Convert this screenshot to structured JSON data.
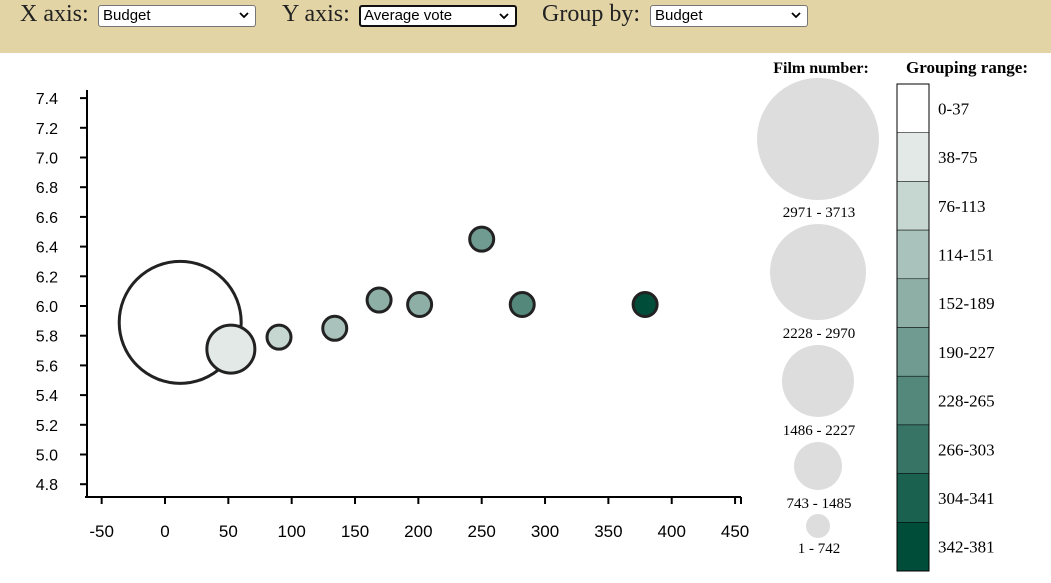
{
  "controls": {
    "x_axis": {
      "label": "X axis:",
      "value": "Budget"
    },
    "y_axis": {
      "label": "Y axis:",
      "value": "Average vote"
    },
    "group_by": {
      "label": "Group by:",
      "value": "Budget"
    }
  },
  "chart_data": {
    "type": "scatter",
    "title": "",
    "xlabel": "",
    "ylabel": "",
    "xlim": [
      -50,
      450
    ],
    "ylim": [
      4.7,
      7.45
    ],
    "x_ticks": [
      -50,
      0,
      50,
      100,
      150,
      200,
      250,
      300,
      350,
      400,
      450
    ],
    "y_ticks": [
      "4.8",
      "5.0",
      "5.2",
      "5.4",
      "5.6",
      "5.8",
      "6.0",
      "6.2",
      "6.4",
      "6.6",
      "6.8",
      "7.0",
      "7.2",
      "7.4"
    ],
    "points": [
      {
        "x": 12,
        "y": 5.89,
        "size_group": 4,
        "color_group": 0
      },
      {
        "x": 52,
        "y": 5.71,
        "size_group": 1,
        "color_group": 1
      },
      {
        "x": 90,
        "y": 5.79,
        "size_group": 0,
        "color_group": 2
      },
      {
        "x": 134,
        "y": 5.85,
        "size_group": 0,
        "color_group": 3
      },
      {
        "x": 169,
        "y": 6.04,
        "size_group": 0,
        "color_group": 4
      },
      {
        "x": 201,
        "y": 6.01,
        "size_group": 0,
        "color_group": 4
      },
      {
        "x": 250,
        "y": 6.45,
        "size_group": 0,
        "color_group": 5
      },
      {
        "x": 282,
        "y": 6.01,
        "size_group": 0,
        "color_group": 6
      },
      {
        "x": 379,
        "y": 6.01,
        "size_group": 0,
        "color_group": 9
      }
    ],
    "size_legend": {
      "title": "Film number:",
      "items": [
        "2971 - 3713",
        "2228 - 2970",
        "1486 - 2227",
        "743 - 1485",
        "1 - 742"
      ]
    },
    "color_legend": {
      "title": "Grouping range:",
      "items": [
        "0-37",
        "38-75",
        "76-113",
        "114-151",
        "152-189",
        "190-227",
        "228-265",
        "266-303",
        "304-341",
        "342-381"
      ],
      "colors": [
        "#ffffff",
        "#e2e9e6",
        "#c6d6d1",
        "#a9c2bb",
        "#8dafa6",
        "#709b90",
        "#54887b",
        "#377465",
        "#1b6150",
        "#004d3a"
      ]
    },
    "size_legend_fill": "#dddddd",
    "marker_stroke": "#222222"
  }
}
